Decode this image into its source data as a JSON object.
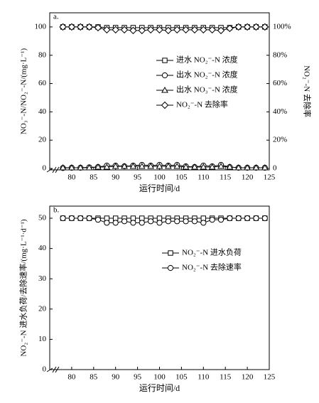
{
  "chart_data": [
    {
      "type": "line",
      "panel_label": "a.",
      "xlabel": "运行时间/d",
      "ylabel": "NO₃⁻-N/NO₂⁻-N/(mg·L⁻¹)",
      "y2label": "NO₂⁻-N 去除率",
      "x": [
        78,
        80,
        82,
        84,
        86,
        88,
        90,
        92,
        94,
        96,
        98,
        100,
        102,
        104,
        106,
        108,
        110,
        112,
        114,
        116,
        118,
        120,
        122,
        124
      ],
      "xlim": [
        75,
        125
      ],
      "xticks": [
        80,
        85,
        90,
        95,
        100,
        105,
        110,
        115,
        120,
        125
      ],
      "ylim": [
        -1,
        110
      ],
      "yticks": [
        0,
        20,
        40,
        60,
        80,
        100
      ],
      "y2lim": [
        -1,
        110
      ],
      "y2ticks": [
        0,
        {
          "value": 20,
          "label": "20%"
        },
        {
          "value": 40,
          "label": "40%"
        },
        {
          "value": 60,
          "label": "60%"
        },
        {
          "value": 80,
          "label": "80%"
        },
        {
          "value": 100,
          "label": "100%"
        }
      ],
      "legend": "center right",
      "series": [
        {
          "name": "进水 NO₂⁻-N 浓度",
          "color": "#000000",
          "marker": "square",
          "values": [
            100,
            100,
            100,
            100,
            100,
            99.5,
            99.5,
            99.5,
            99.5,
            99.5,
            99.5,
            99.5,
            99.5,
            99.5,
            99.5,
            99.5,
            99.5,
            99.5,
            99.5,
            99.5,
            100,
            100,
            100,
            100
          ]
        },
        {
          "name": "出水 NO₂⁻-N 浓度",
          "color": "#000000",
          "marker": "circle",
          "values": [
            0.3,
            0.5,
            0.5,
            0.8,
            1,
            2,
            2,
            1.5,
            2,
            2.5,
            2,
            2.5,
            2,
            2.5,
            1.5,
            1,
            2,
            1.5,
            2.5,
            1,
            0.5,
            0.5,
            0.5,
            0.5
          ]
        },
        {
          "name": "出水 NO₃⁻-N 浓度",
          "color": "#000000",
          "marker": "triangle",
          "values": [
            0.5,
            0.5,
            0.5,
            0.5,
            1,
            1,
            1.5,
            1.5,
            1.5,
            1.5,
            1.5,
            1.5,
            1.5,
            1.5,
            1,
            1,
            1,
            1,
            1.5,
            1,
            0.5,
            0.5,
            0.5,
            0.5
          ]
        },
        {
          "name": "NO₂⁻-N 去除率",
          "color": "#000000",
          "marker": "diamond",
          "axis": "y2",
          "values": [
            100,
            100,
            100,
            100,
            99.5,
            98,
            98,
            98,
            97.5,
            97.5,
            98,
            98,
            97.5,
            98,
            98,
            98,
            98,
            98,
            97.5,
            99,
            100,
            100,
            100,
            100
          ]
        }
      ]
    },
    {
      "type": "line",
      "panel_label": "b.",
      "xlabel": "运行时间/d",
      "ylabel": "NO₂⁻-N 进水负荷/去除速率/(mg·L⁻¹·d⁻¹)",
      "x": [
        78,
        80,
        82,
        84,
        86,
        88,
        90,
        92,
        94,
        96,
        98,
        100,
        102,
        104,
        106,
        108,
        110,
        112,
        114,
        116,
        118,
        120,
        122,
        124
      ],
      "xlim": [
        75,
        125
      ],
      "xticks": [
        80,
        85,
        90,
        95,
        100,
        105,
        110,
        115,
        120,
        125
      ],
      "ylim": [
        0,
        54
      ],
      "yticks": [
        0,
        10,
        20,
        30,
        40,
        50
      ],
      "legend": "center right",
      "series": [
        {
          "name": "NO₂⁻-N 进水负荷",
          "color": "#000000",
          "marker": "square",
          "values": [
            50,
            50,
            50,
            50,
            50,
            50,
            50,
            50,
            50,
            50,
            50,
            50,
            50,
            50,
            50,
            50,
            50,
            50,
            50,
            50,
            50,
            50,
            50,
            50
          ]
        },
        {
          "name": "NO₂⁻-N 去除速率",
          "color": "#000000",
          "marker": "circle",
          "values": [
            50,
            50,
            50,
            50,
            49.5,
            48.5,
            48.5,
            49,
            48.5,
            48.5,
            49,
            48.5,
            49,
            49,
            49,
            49,
            48.5,
            49.5,
            49.5,
            50,
            50,
            50,
            50,
            50
          ]
        }
      ]
    }
  ]
}
